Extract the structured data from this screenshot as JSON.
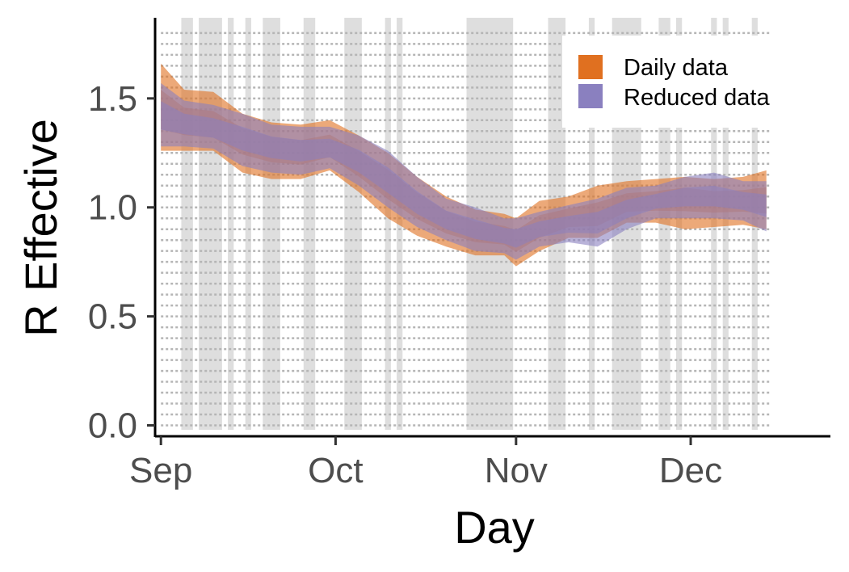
{
  "chart_data": {
    "type": "area",
    "xlabel": "Day",
    "ylabel": "R Effective",
    "x_domain": [
      "2020-08-31",
      "2020-12-25"
    ],
    "x_ticks": [
      {
        "date": "2020-09-01",
        "label": "Sep"
      },
      {
        "date": "2020-10-01",
        "label": "Oct"
      },
      {
        "date": "2020-11-01",
        "label": "Nov"
      },
      {
        "date": "2020-12-01",
        "label": "Dec"
      }
    ],
    "ylim": [
      -0.05,
      1.87
    ],
    "y_ticks": [
      {
        "value": 0.0,
        "label": "0.0"
      },
      {
        "value": 0.5,
        "label": "0.5"
      },
      {
        "value": 1.0,
        "label": "1.0"
      },
      {
        "value": 1.5,
        "label": "1.5"
      }
    ],
    "grid": false,
    "legend": {
      "position": "top-right",
      "entries": [
        {
          "label": "Daily data",
          "color": "#e07020"
        },
        {
          "label": "Reduced data",
          "color": "#8a80bf"
        }
      ]
    },
    "shaded_date_ranges": [
      [
        "2020-09-05",
        "2020-09-06"
      ],
      [
        "2020-09-08",
        "2020-09-11"
      ],
      [
        "2020-09-13",
        "2020-09-13"
      ],
      [
        "2020-09-16",
        "2020-09-16"
      ],
      [
        "2020-09-19",
        "2020-09-21"
      ],
      [
        "2020-09-26",
        "2020-09-27"
      ],
      [
        "2020-10-03",
        "2020-10-05"
      ],
      [
        "2020-10-10",
        "2020-10-10"
      ],
      [
        "2020-10-12",
        "2020-10-12"
      ],
      [
        "2020-10-24",
        "2020-10-31"
      ],
      [
        "2020-11-07",
        "2020-11-09"
      ],
      [
        "2020-11-14",
        "2020-11-14"
      ],
      [
        "2020-11-18",
        "2020-11-22"
      ],
      [
        "2020-11-26",
        "2020-11-27"
      ],
      [
        "2020-11-29",
        "2020-11-29"
      ],
      [
        "2020-12-05",
        "2020-12-05"
      ],
      [
        "2020-12-07",
        "2020-12-07"
      ],
      [
        "2020-12-12",
        "2020-12-12"
      ]
    ],
    "series": [
      {
        "name": "Daily data",
        "color": "#e07020",
        "x": [
          "2020-09-01",
          "2020-09-05",
          "2020-09-10",
          "2020-09-15",
          "2020-09-20",
          "2020-09-25",
          "2020-09-30",
          "2020-10-05",
          "2020-10-10",
          "2020-10-15",
          "2020-10-20",
          "2020-10-25",
          "2020-10-30",
          "2020-11-01",
          "2020-11-05",
          "2020-11-10",
          "2020-11-15",
          "2020-11-20",
          "2020-11-25",
          "2020-11-30",
          "2020-12-05",
          "2020-12-10",
          "2020-12-14"
        ],
        "mean": [
          1.44,
          1.39,
          1.37,
          1.31,
          1.27,
          1.25,
          1.28,
          1.2,
          1.11,
          1.01,
          0.93,
          0.89,
          0.87,
          0.85,
          0.91,
          0.95,
          0.96,
          1.02,
          1.03,
          1.05,
          1.03,
          1.03,
          1.03
        ],
        "lower": [
          1.26,
          1.26,
          1.26,
          1.16,
          1.13,
          1.13,
          1.17,
          1.07,
          0.95,
          0.87,
          0.82,
          0.78,
          0.78,
          0.73,
          0.8,
          0.86,
          0.86,
          0.93,
          0.93,
          0.9,
          0.91,
          0.92,
          0.9
        ],
        "upper": [
          1.66,
          1.54,
          1.53,
          1.43,
          1.39,
          1.38,
          1.4,
          1.33,
          1.25,
          1.14,
          1.05,
          0.99,
          0.97,
          0.95,
          1.03,
          1.05,
          1.1,
          1.12,
          1.13,
          1.14,
          1.13,
          1.14,
          1.17
        ]
      },
      {
        "name": "Reduced data",
        "color": "#8a80bf",
        "x": [
          "2020-09-01",
          "2020-09-05",
          "2020-09-10",
          "2020-09-15",
          "2020-09-20",
          "2020-09-25",
          "2020-09-30",
          "2020-10-05",
          "2020-10-10",
          "2020-10-15",
          "2020-10-20",
          "2020-10-25",
          "2020-10-30",
          "2020-11-01",
          "2020-11-05",
          "2020-11-10",
          "2020-11-15",
          "2020-11-20",
          "2020-11-25",
          "2020-11-30",
          "2020-12-05",
          "2020-12-10",
          "2020-12-14"
        ],
        "mean": [
          1.42,
          1.38,
          1.36,
          1.32,
          1.28,
          1.26,
          1.27,
          1.21,
          1.12,
          1.02,
          0.94,
          0.9,
          0.87,
          0.86,
          0.9,
          0.92,
          0.93,
          0.99,
          1.03,
          1.05,
          1.05,
          1.03,
          1.01
        ],
        "lower": [
          1.28,
          1.28,
          1.27,
          1.19,
          1.16,
          1.15,
          1.18,
          1.1,
          1.0,
          0.91,
          0.85,
          0.8,
          0.79,
          0.76,
          0.82,
          0.84,
          0.82,
          0.9,
          0.95,
          0.95,
          0.95,
          0.94,
          0.89
        ],
        "upper": [
          1.57,
          1.49,
          1.47,
          1.43,
          1.38,
          1.37,
          1.37,
          1.33,
          1.26,
          1.14,
          1.04,
          1.0,
          0.95,
          0.95,
          0.98,
          1.01,
          1.04,
          1.09,
          1.1,
          1.14,
          1.16,
          1.12,
          1.12
        ]
      }
    ]
  }
}
